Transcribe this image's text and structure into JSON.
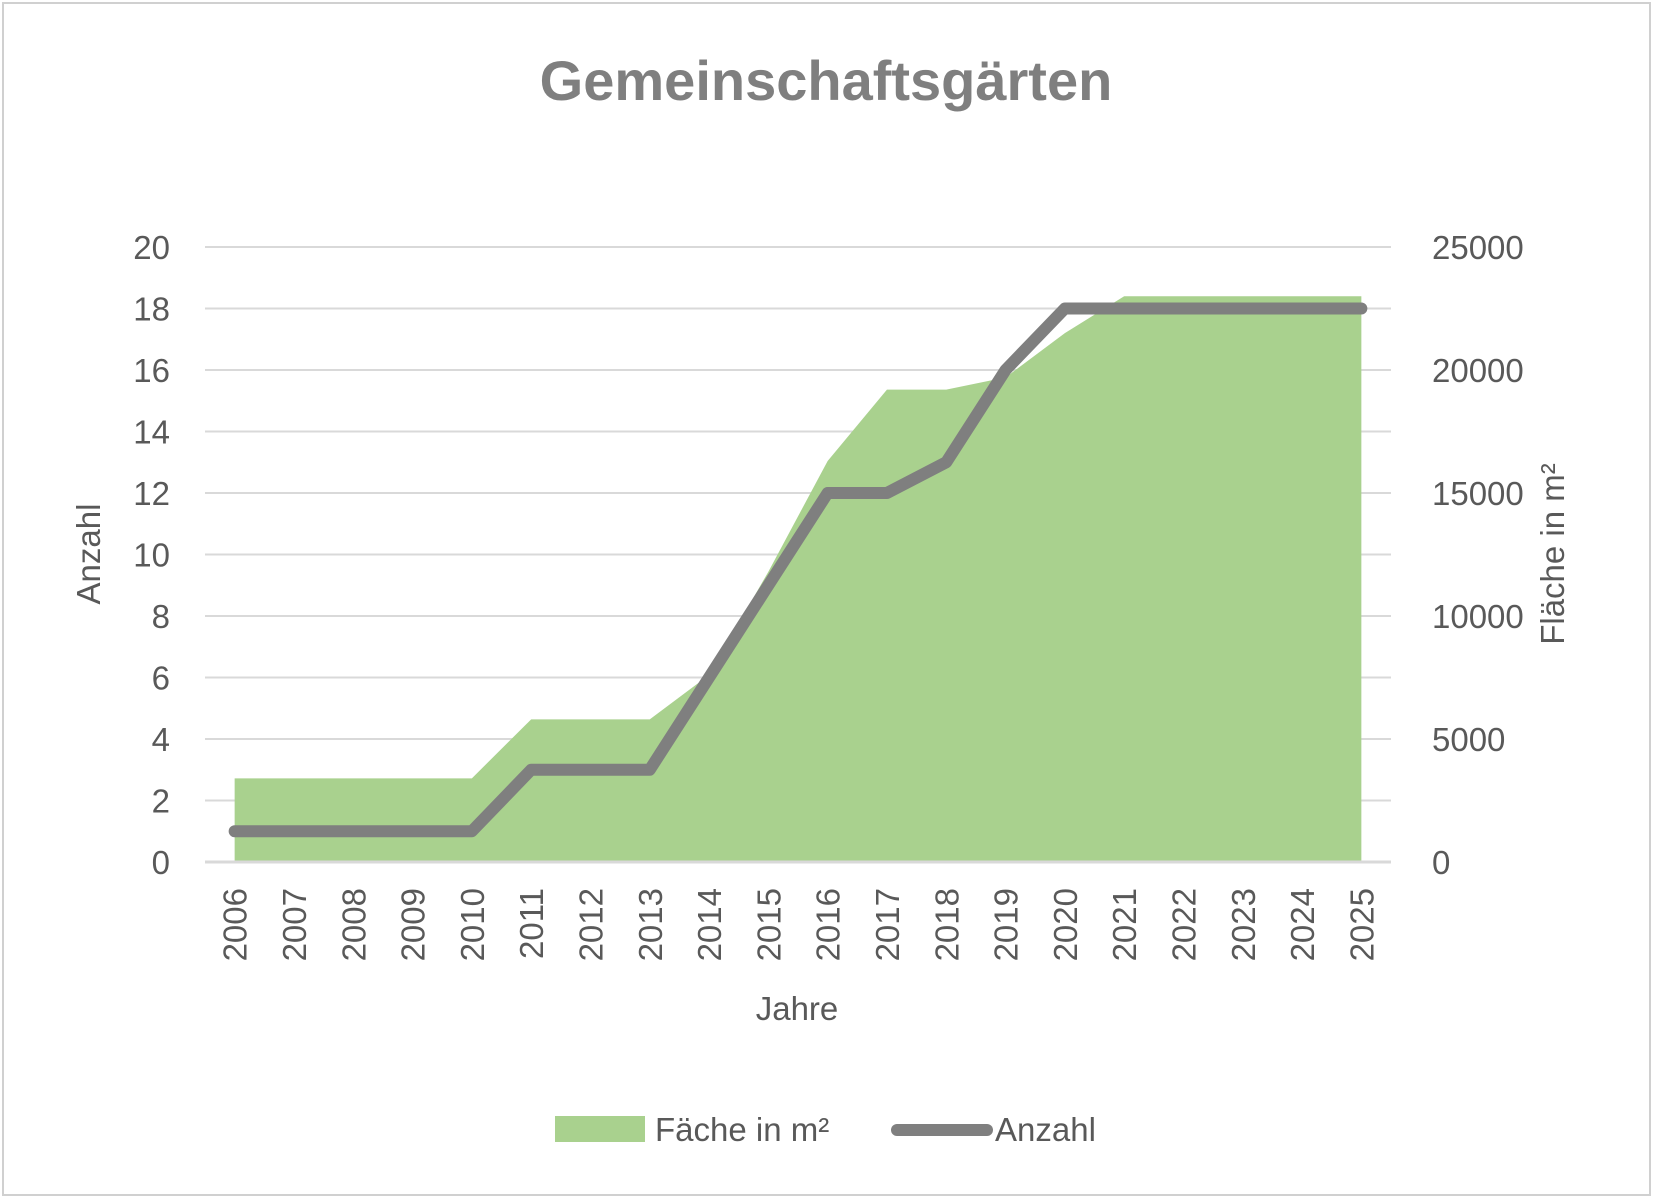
{
  "chart_data": {
    "type": "area",
    "title": "Gemeinschaftsgärten",
    "xlabel": "Jahre",
    "ylabel": "Anzahl",
    "y2label": "Fläche in m²",
    "categories": [
      "2006",
      "2007",
      "2008",
      "2009",
      "2010",
      "2011",
      "2012",
      "2013",
      "2014",
      "2015",
      "2016",
      "2017",
      "2018",
      "2019",
      "2020",
      "2021",
      "2022",
      "2023",
      "2024",
      "2025"
    ],
    "ylim": [
      0,
      20
    ],
    "yticks": [
      "0",
      "2",
      "4",
      "6",
      "8",
      "10",
      "12",
      "14",
      "16",
      "18",
      "20"
    ],
    "y2lim": [
      0,
      25000
    ],
    "y2ticks": [
      "0",
      "5000",
      "10000",
      "15000",
      "20000",
      "25000"
    ],
    "grid": true,
    "legend_position": "bottom",
    "series": [
      {
        "name": "Fäche in m²",
        "type": "area",
        "axis": "right",
        "color": "#a9d18e",
        "values": [
          3400,
          3400,
          3400,
          3400,
          3400,
          5800,
          5800,
          5800,
          7600,
          11800,
          16300,
          19200,
          19200,
          19700,
          21500,
          23000,
          23000,
          23000,
          23000,
          23000
        ]
      },
      {
        "name": "Anzahl",
        "type": "line",
        "axis": "left",
        "color": "#7f7f7f",
        "values": [
          1,
          1,
          1,
          1,
          1,
          3,
          3,
          3,
          6,
          9,
          12,
          12,
          13,
          16,
          18,
          18,
          18,
          18,
          18,
          18
        ]
      }
    ]
  }
}
